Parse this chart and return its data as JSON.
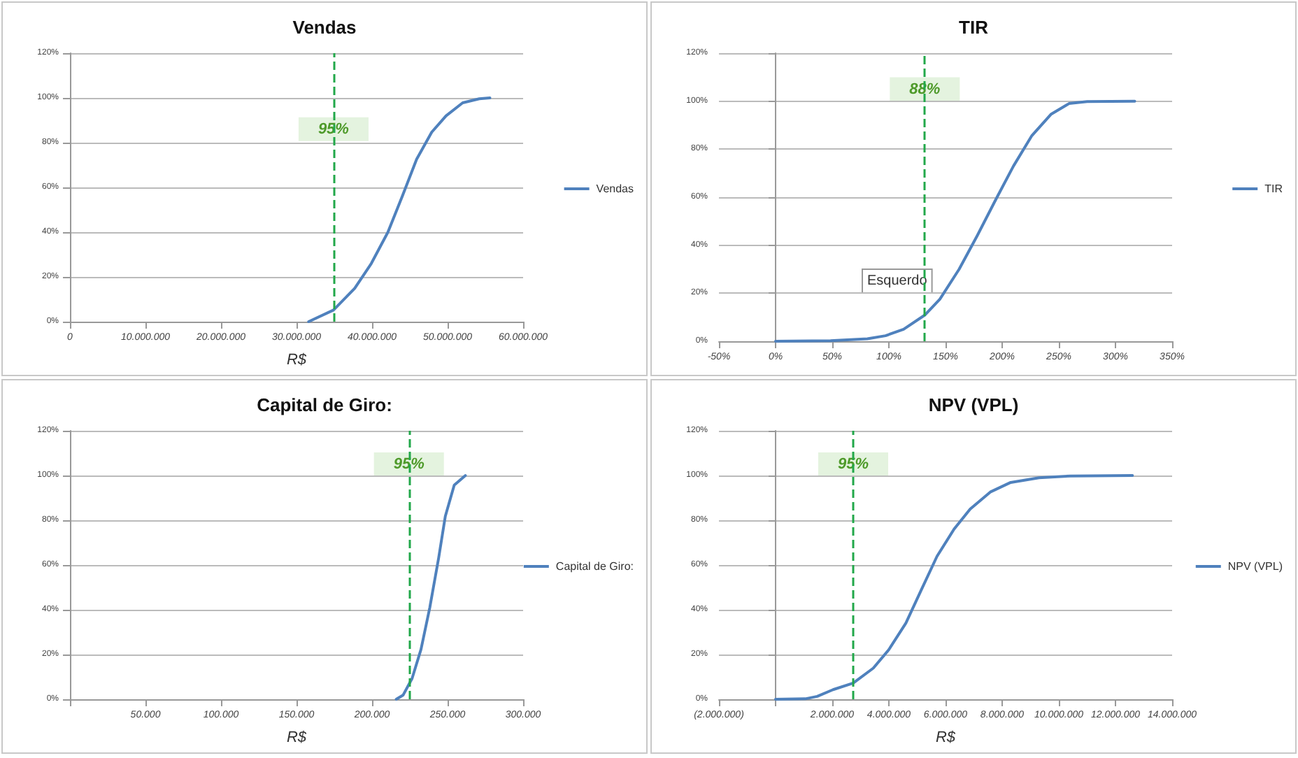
{
  "chart_data": [
    {
      "type": "line",
      "title": "Vendas",
      "xlabel": "R$",
      "legend": "right",
      "grid": "y",
      "marker": "none",
      "x": [
        31600000,
        34900000,
        37700000,
        39900000,
        42100000,
        44000000,
        45900000,
        47900000,
        49800000,
        52000000,
        54200000,
        55600000
      ],
      "series": [
        {
          "name": "Vendas",
          "color": "#4f81bd",
          "values": [
            0,
            5.2,
            14.9,
            26,
            40,
            56,
            72.6,
            84.7,
            92,
            97.8,
            99.6,
            100
          ]
        }
      ],
      "xlim": [
        0,
        60000000
      ],
      "xticks": [
        0,
        {
          "value": 10000000,
          "label": "10.000.000"
        },
        {
          "value": 20000000,
          "label": "20.000.000"
        },
        {
          "value": 30000000,
          "label": "30.000.000"
        },
        {
          "value": 40000000,
          "label": "40.000.000"
        },
        {
          "value": 50000000,
          "label": "50.000.000"
        },
        {
          "value": 60000000,
          "label": "60.000.000"
        }
      ],
      "ylim": [
        0,
        120
      ],
      "yticks": [
        {
          "value": 0,
          "label": "0%"
        },
        {
          "value": 20,
          "label": "20%"
        },
        {
          "value": 40,
          "label": "40%"
        },
        {
          "value": 60,
          "label": "60%"
        },
        {
          "value": 80,
          "label": "80%"
        },
        {
          "value": 100,
          "label": "100%"
        },
        {
          "value": 120,
          "label": "120%"
        }
      ],
      "ref_lines": [
        {
          "axis": "x",
          "value": 34900000,
          "color": "#22a84a",
          "line_style": "dashed"
        }
      ],
      "annotations": [
        {
          "text": "95%",
          "x": 34900000,
          "y": 86
        }
      ]
    },
    {
      "type": "line",
      "title": "TIR",
      "legend": "right",
      "grid": "y",
      "marker": "none",
      "x": [
        0,
        48.5,
        81,
        97,
        113,
        132,
        145,
        162,
        178,
        194,
        210,
        226,
        243,
        259,
        275,
        317
      ],
      "series": [
        {
          "name": "TIR",
          "color": "#4f81bd",
          "values": [
            0,
            0.2,
            1,
            2.3,
            5,
            11,
            17.5,
            30,
            44,
            58.7,
            73,
            85.5,
            94.5,
            99,
            99.8,
            100
          ]
        }
      ],
      "xlim": [
        -50,
        350
      ],
      "xticks": [
        {
          "value": -50,
          "label": "-50%"
        },
        {
          "value": 0,
          "label": "0%"
        },
        {
          "value": 50,
          "label": "50%"
        },
        {
          "value": 100,
          "label": "100%"
        },
        {
          "value": 150,
          "label": "150%"
        },
        {
          "value": 200,
          "label": "200%"
        },
        {
          "value": 250,
          "label": "250%"
        },
        {
          "value": 300,
          "label": "300%"
        },
        {
          "value": 350,
          "label": "350%"
        }
      ],
      "ylim": [
        0,
        120
      ],
      "yticks": [
        {
          "value": 0,
          "label": "0%"
        },
        {
          "value": 20,
          "label": "20%"
        },
        {
          "value": 40,
          "label": "40%"
        },
        {
          "value": 60,
          "label": "60%"
        },
        {
          "value": 80,
          "label": "80%"
        },
        {
          "value": 100,
          "label": "100%"
        },
        {
          "value": 120,
          "label": "120%"
        }
      ],
      "ref_lines": [
        {
          "axis": "x",
          "value": 131.7,
          "color": "#22a84a",
          "line_style": "dashed"
        }
      ],
      "annotations": [
        {
          "text": "88%",
          "x": 131.7,
          "y": 105
        },
        "Esquerdo"
      ]
    },
    {
      "type": "line",
      "title": "Capital de Giro:",
      "xlabel": "R$",
      "legend": "right",
      "grid": "y",
      "marker": "none",
      "x": [
        216000,
        220600,
        226500,
        232400,
        238200,
        244100,
        248500,
        254400,
        261800
      ],
      "series": [
        {
          "name": "Capital de Giro:",
          "color": "#4f81bd",
          "values": [
            0,
            1.9,
            9.3,
            22.3,
            40.9,
            63.2,
            81.8,
            95.7,
            100
          ]
        }
      ],
      "xlim": [
        0,
        300000
      ],
      "xticks": [
        {
          "value": 0,
          "label": null
        },
        {
          "value": 50000,
          "label": "50.000"
        },
        {
          "value": 100000,
          "label": "100.000"
        },
        {
          "value": 150000,
          "label": "150.000"
        },
        {
          "value": 200000,
          "label": "200.000"
        },
        {
          "value": 250000,
          "label": "250.000"
        },
        {
          "value": 300000,
          "label": "300.000"
        }
      ],
      "ylim": [
        0,
        120
      ],
      "yticks": [
        {
          "value": 0,
          "label": "0%"
        },
        {
          "value": 20,
          "label": "20%"
        },
        {
          "value": 40,
          "label": "40%"
        },
        {
          "value": 60,
          "label": "60%"
        },
        {
          "value": 80,
          "label": "80%"
        },
        {
          "value": 100,
          "label": "100%"
        },
        {
          "value": 120,
          "label": "120%"
        }
      ],
      "ref_lines": [
        {
          "axis": "x",
          "value": 224400,
          "color": "#22a84a",
          "line_style": "dashed"
        }
      ],
      "annotations": [
        {
          "text": "95%",
          "x": 224400,
          "y": 105
        }
      ]
    },
    {
      "type": "line",
      "title": "NPV (VPL)",
      "xlabel": "R$",
      "legend": "right",
      "grid": "y",
      "marker": "none",
      "x": [
        0,
        1050000,
        1470000,
        2030000,
        2740000,
        3450000,
        4000000,
        4600000,
        5150000,
        5700000,
        6300000,
        6870000,
        7580000,
        8300000,
        9300000,
        10400000,
        12600000
      ],
      "series": [
        {
          "name": "NPV (VPL)",
          "color": "#4f81bd",
          "values": [
            0,
            0.2,
            1.3,
            4.3,
            7.2,
            13.9,
            22.2,
            34,
            49,
            63.9,
            76,
            85,
            92.6,
            96.9,
            99,
            99.8,
            100
          ]
        }
      ],
      "xlim": [
        -2000000,
        14000000
      ],
      "xticks": [
        {
          "value": -2000000,
          "label": "(2.000.000)"
        },
        {
          "value": 0,
          "label": null
        },
        {
          "value": 2000000,
          "label": "2.000.000"
        },
        {
          "value": 4000000,
          "label": "4.000.000"
        },
        {
          "value": 6000000,
          "label": "6.000.000"
        },
        {
          "value": 8000000,
          "label": "8.000.000"
        },
        {
          "value": 10000000,
          "label": "10.000.000"
        },
        {
          "value": 12000000,
          "label": "12.000.000"
        },
        {
          "value": 14000000,
          "label": "14.000.000"
        }
      ],
      "ylim": [
        0,
        120
      ],
      "yticks": [
        {
          "value": 0,
          "label": "0%"
        },
        {
          "value": 20,
          "label": "20%"
        },
        {
          "value": 40,
          "label": "40%"
        },
        {
          "value": 60,
          "label": "60%"
        },
        {
          "value": 80,
          "label": "80%"
        },
        {
          "value": 100,
          "label": "100%"
        },
        {
          "value": 120,
          "label": "120%"
        }
      ],
      "ref_lines": [
        {
          "axis": "x",
          "value": 2740000,
          "color": "#22a84a",
          "line_style": "dashed"
        }
      ],
      "annotations": [
        {
          "text": "95%",
          "x": 2740000,
          "y": 105
        }
      ]
    }
  ]
}
